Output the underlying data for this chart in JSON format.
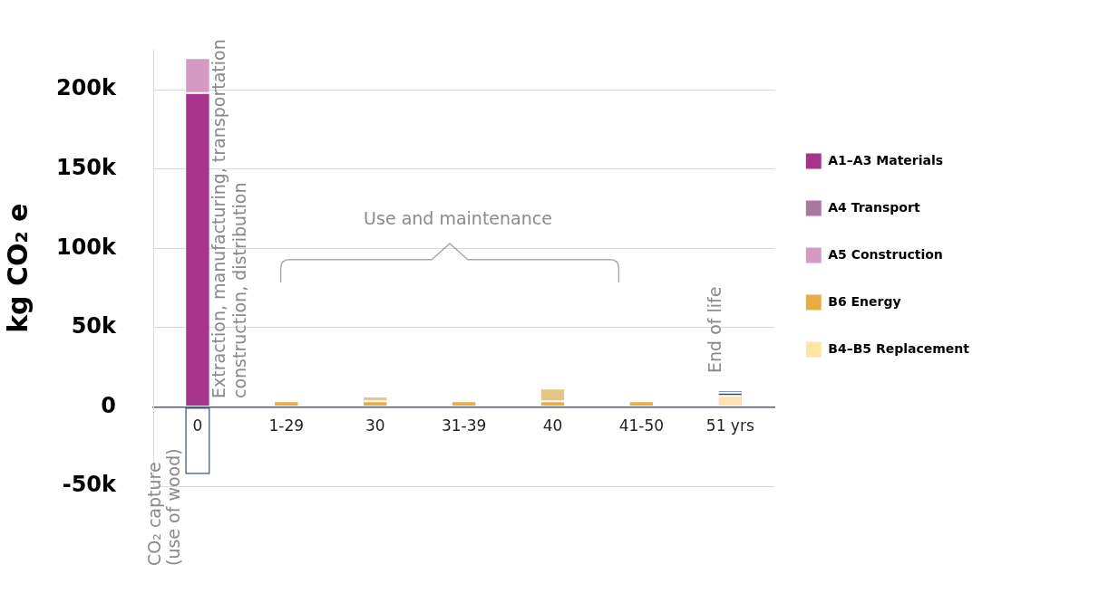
{
  "chart_data": {
    "type": "bar",
    "stacked": true,
    "ylabel": "kg CO₂ e",
    "categories": [
      "0",
      "1-29",
      "30",
      "31-39",
      "40",
      "41-50",
      "51 yrs"
    ],
    "series": [
      {
        "name": "A1–A3 Materials",
        "color": "#a8338a",
        "values": [
          198000,
          null,
          null,
          null,
          null,
          null,
          null
        ]
      },
      {
        "name": "A4 Transport",
        "color": "#ab76a3",
        "values": [
          null,
          null,
          null,
          null,
          null,
          null,
          null
        ]
      },
      {
        "name": "A5 Construction",
        "color": "#d49ac4",
        "values": [
          22000,
          null,
          null,
          null,
          null,
          null,
          null
        ]
      },
      {
        "name": "B6 Energy",
        "color": "#e9ad44",
        "values": [
          null,
          3500,
          3500,
          3500,
          3500,
          3500,
          null
        ]
      },
      {
        "name": "B4–B5 Replacement",
        "color": "#fde6a4",
        "colors": [
          "#fde6a4",
          "#fde6a4",
          "#e5c98a",
          "#fde6a4",
          "#e2c685",
          "#fde6a4",
          "#fbe2b0"
        ],
        "values": [
          null,
          null,
          3000,
          null,
          8000,
          null,
          7000
        ]
      },
      {
        "color": "#464a5e",
        "values": [
          null,
          null,
          null,
          null,
          null,
          null,
          2000
        ]
      },
      {
        "color": "#5b7db5",
        "values": [
          null,
          null,
          null,
          null,
          null,
          null,
          1500
        ]
      },
      {
        "color": "#4b5a8f",
        "values": [
          -42500,
          null,
          null,
          null,
          null,
          null,
          null
        ]
      }
    ],
    "ylim": [
      -50000,
      225000
    ],
    "yticks": [
      {
        "value": -50000,
        "label": "-50k"
      },
      0,
      {
        "value": 50000,
        "label": "50k"
      },
      {
        "value": 100000,
        "label": "100k"
      },
      {
        "value": 150000,
        "label": "150k"
      },
      {
        "value": 200000,
        "label": "200k"
      }
    ],
    "grid": "y",
    "legend": "right",
    "annotations": [
      "Extraction, manufacturing, transportation\nconstruction, distribution",
      "CO₂ capture\n(use of wood)",
      "Use and maintenance",
      "End of life"
    ]
  }
}
